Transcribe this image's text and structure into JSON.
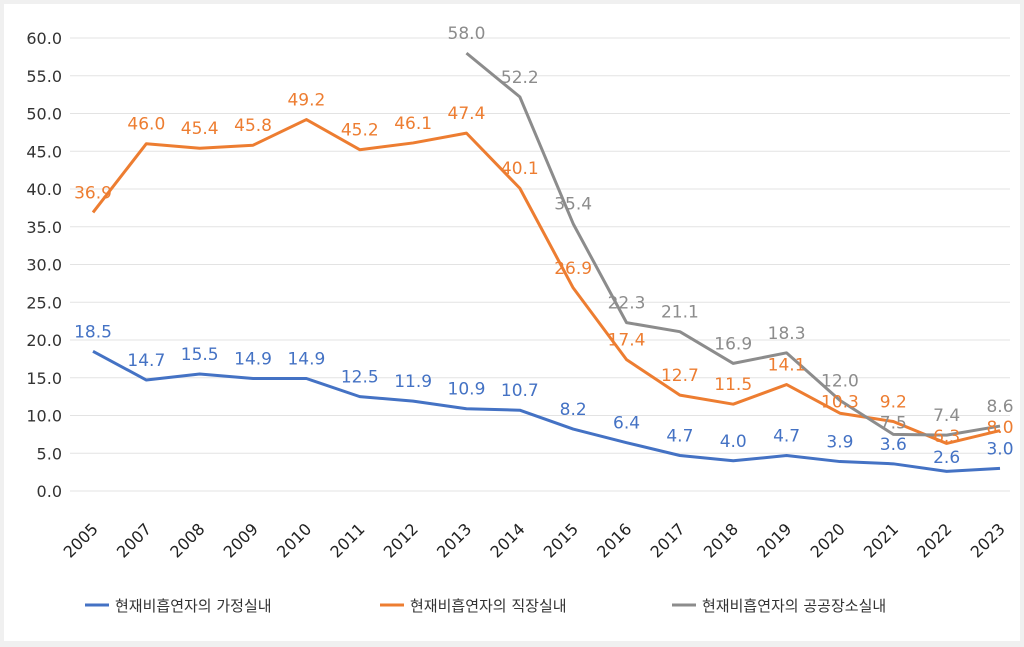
{
  "chart_data": {
    "type": "line",
    "title": "",
    "xlabel": "",
    "ylabel": "",
    "ylim": [
      0,
      60
    ],
    "yticks": [
      "0.0",
      "5.0",
      "10.0",
      "15.0",
      "20.0",
      "25.0",
      "30.0",
      "35.0",
      "40.0",
      "45.0",
      "50.0",
      "55.0",
      "60.0"
    ],
    "grid": true,
    "legend": "bottom",
    "categories": [
      "2005",
      "2007",
      "2008",
      "2009",
      "2010",
      "2011",
      "2012",
      "2013",
      "2014",
      "2015",
      "2016",
      "2017",
      "2018",
      "2019",
      "2020",
      "2021",
      "2022",
      "2023"
    ],
    "series": [
      {
        "name": "현재비흡연자의 가정실내",
        "color": "#4472c4",
        "values": [
          18.5,
          14.7,
          15.5,
          14.9,
          14.9,
          12.5,
          11.9,
          10.9,
          10.7,
          8.2,
          6.4,
          4.7,
          4.0,
          4.7,
          3.9,
          3.6,
          2.6,
          3.0
        ]
      },
      {
        "name": "현재비흡연자의 직장실내",
        "color": "#ed7d31",
        "values": [
          36.9,
          46.0,
          45.4,
          45.8,
          49.2,
          45.2,
          46.1,
          47.4,
          40.1,
          26.9,
          17.4,
          12.7,
          11.5,
          14.1,
          10.3,
          9.2,
          6.3,
          8.0
        ]
      },
      {
        "name": "현재비흡연자의 공공장소실내",
        "color": "#8c8c8c",
        "values": [
          null,
          null,
          null,
          null,
          null,
          null,
          null,
          58.0,
          52.2,
          35.4,
          22.3,
          21.1,
          16.9,
          18.3,
          12.0,
          7.5,
          7.4,
          8.6
        ]
      }
    ]
  }
}
